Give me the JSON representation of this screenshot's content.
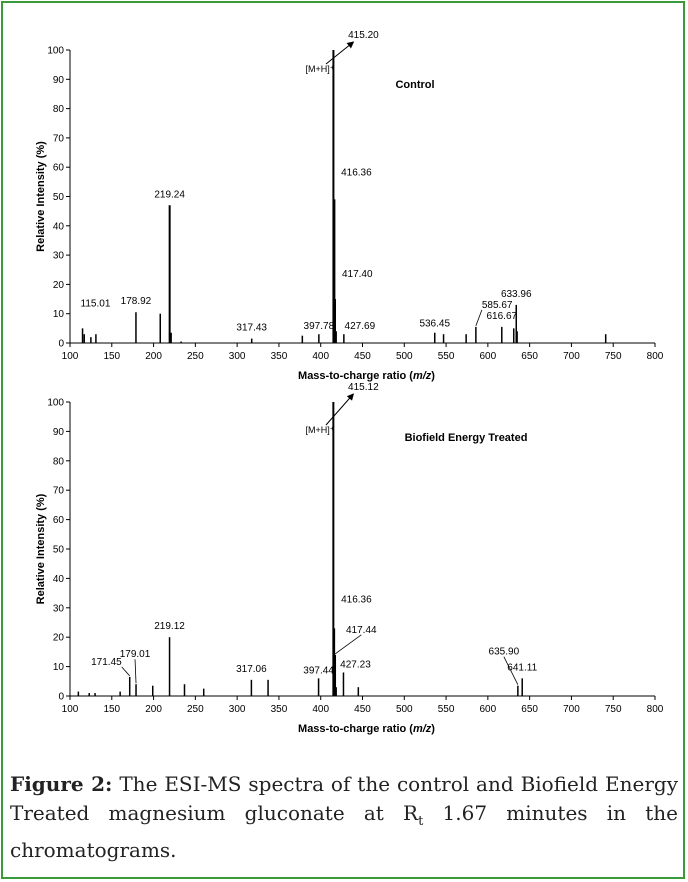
{
  "figure": {
    "label": "Figure 2:",
    "text_before_sub": "The ESI-MS spectra of the control and Biofield Energy Treated magnesium gluconate at R",
    "sub": "t",
    "text_after_sub": " 1.67 minutes in the chromatograms."
  },
  "colors": {
    "border": "#3a9a3a",
    "ink": "#000000"
  },
  "chart_data": [
    {
      "type": "bar",
      "title": "Control",
      "xlabel_prefix": "Mass-to-charge ratio (",
      "xlabel_italic": "m/z",
      "xlabel_suffix": ")",
      "ylabel": "Relative Intensity (%)",
      "xlim": [
        100,
        800
      ],
      "ylim": [
        0,
        100
      ],
      "xticks": [
        100,
        150,
        200,
        250,
        300,
        350,
        400,
        450,
        500,
        550,
        600,
        650,
        700,
        750,
        800
      ],
      "yticks": [
        0,
        10,
        20,
        30,
        40,
        50,
        60,
        70,
        80,
        90,
        100
      ],
      "ion_label": "[M+H]⁺",
      "peaks": [
        {
          "x": 115.01,
          "y": 5,
          "label": "115.01"
        },
        {
          "x": 117,
          "y": 3
        },
        {
          "x": 125,
          "y": 2
        },
        {
          "x": 131,
          "y": 3
        },
        {
          "x": 178.92,
          "y": 10.5,
          "label": "178.92"
        },
        {
          "x": 208,
          "y": 10
        },
        {
          "x": 219.24,
          "y": 47,
          "label": "219.24"
        },
        {
          "x": 221,
          "y": 3.5
        },
        {
          "x": 233,
          "y": 0.5
        },
        {
          "x": 317.43,
          "y": 1.5,
          "label": "317.43"
        },
        {
          "x": 378,
          "y": 2.5
        },
        {
          "x": 397.78,
          "y": 3,
          "label": "397.78"
        },
        {
          "x": 415.2,
          "y": 100,
          "label": "415.20"
        },
        {
          "x": 416.36,
          "y": 49,
          "label": "416.36"
        },
        {
          "x": 417.4,
          "y": 15,
          "label": "417.40"
        },
        {
          "x": 418.5,
          "y": 4
        },
        {
          "x": 427.69,
          "y": 3,
          "label": "427.69"
        },
        {
          "x": 536.45,
          "y": 3.5,
          "label": "536.45"
        },
        {
          "x": 547,
          "y": 3
        },
        {
          "x": 574,
          "y": 3
        },
        {
          "x": 585.67,
          "y": 5.5,
          "label": "585.67"
        },
        {
          "x": 616.67,
          "y": 5.5,
          "label": "616.67"
        },
        {
          "x": 631,
          "y": 5
        },
        {
          "x": 633.96,
          "y": 13,
          "label": "633.96"
        },
        {
          "x": 635,
          "y": 4
        },
        {
          "x": 741,
          "y": 3
        }
      ]
    },
    {
      "type": "bar",
      "title": "Biofield Energy Treated",
      "xlabel_prefix": "Mass-to-charge ratio (",
      "xlabel_italic": "m/z",
      "xlabel_suffix": ")",
      "ylabel": "Relative Intensity (%)",
      "xlim": [
        100,
        800
      ],
      "ylim": [
        0,
        100
      ],
      "xticks": [
        100,
        150,
        200,
        250,
        300,
        350,
        400,
        450,
        500,
        550,
        600,
        650,
        700,
        750,
        800
      ],
      "yticks": [
        0,
        10,
        20,
        30,
        40,
        50,
        60,
        70,
        80,
        90,
        100
      ],
      "ion_label": "[M+H]⁺",
      "peaks": [
        {
          "x": 110,
          "y": 1.5
        },
        {
          "x": 123,
          "y": 1
        },
        {
          "x": 130,
          "y": 1
        },
        {
          "x": 160,
          "y": 1.5
        },
        {
          "x": 171.45,
          "y": 6.5,
          "label": "171.45"
        },
        {
          "x": 179.01,
          "y": 4,
          "label": "179.01"
        },
        {
          "x": 199,
          "y": 3.5
        },
        {
          "x": 219.12,
          "y": 20,
          "label": "219.12"
        },
        {
          "x": 237,
          "y": 4
        },
        {
          "x": 260,
          "y": 2.5
        },
        {
          "x": 317.06,
          "y": 5.5,
          "label": "317.06"
        },
        {
          "x": 337,
          "y": 5.5
        },
        {
          "x": 397.44,
          "y": 6,
          "label": "397.44"
        },
        {
          "x": 415.12,
          "y": 100,
          "label": "415.12"
        },
        {
          "x": 416.36,
          "y": 23,
          "label": "416.36"
        },
        {
          "x": 417.44,
          "y": 14,
          "label": "417.44"
        },
        {
          "x": 418.5,
          "y": 3
        },
        {
          "x": 427.23,
          "y": 8,
          "label": "427.23"
        },
        {
          "x": 445,
          "y": 3
        },
        {
          "x": 635.9,
          "y": 3.5,
          "label": "635.90"
        },
        {
          "x": 641.11,
          "y": 6,
          "label": "641.11"
        }
      ]
    }
  ]
}
